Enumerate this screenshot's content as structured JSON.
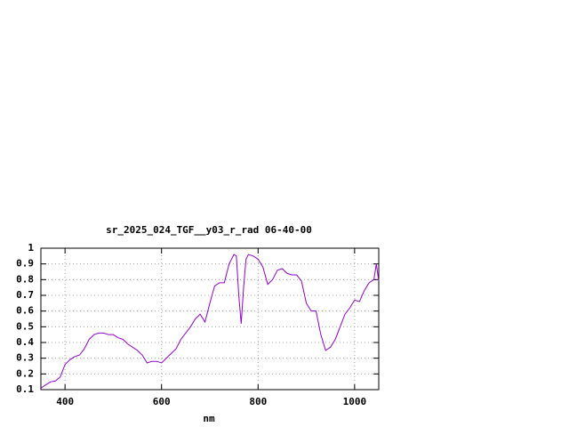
{
  "chart_data": {
    "type": "line",
    "title": "sr_2025_024_TGF__y03_r_rad 06-40-00",
    "x_label": "nm",
    "x": [
      350,
      360,
      370,
      380,
      390,
      400,
      410,
      420,
      430,
      440,
      450,
      460,
      470,
      480,
      490,
      500,
      510,
      520,
      530,
      540,
      550,
      560,
      570,
      580,
      590,
      600,
      610,
      620,
      630,
      640,
      650,
      660,
      670,
      680,
      690,
      700,
      710,
      720,
      730,
      740,
      750,
      755,
      760,
      765,
      770,
      775,
      780,
      790,
      800,
      810,
      820,
      830,
      840,
      850,
      860,
      870,
      880,
      890,
      900,
      910,
      920,
      930,
      940,
      950,
      960,
      970,
      980,
      990,
      1000,
      1010,
      1020,
      1030,
      1040,
      1045,
      1050
    ],
    "values": [
      0.11,
      0.13,
      0.15,
      0.155,
      0.18,
      0.26,
      0.29,
      0.31,
      0.32,
      0.36,
      0.42,
      0.45,
      0.46,
      0.46,
      0.45,
      0.45,
      0.43,
      0.42,
      0.39,
      0.37,
      0.35,
      0.32,
      0.27,
      0.28,
      0.28,
      0.27,
      0.3,
      0.33,
      0.36,
      0.42,
      0.46,
      0.5,
      0.55,
      0.58,
      0.53,
      0.65,
      0.76,
      0.78,
      0.78,
      0.9,
      0.96,
      0.95,
      0.7,
      0.52,
      0.75,
      0.93,
      0.96,
      0.95,
      0.93,
      0.88,
      0.77,
      0.8,
      0.86,
      0.87,
      0.84,
      0.83,
      0.83,
      0.79,
      0.65,
      0.6,
      0.6,
      0.45,
      0.35,
      0.37,
      0.42,
      0.5,
      0.58,
      0.62,
      0.67,
      0.66,
      0.73,
      0.78,
      0.8,
      0.9,
      0.79
    ],
    "color": "#9400d3",
    "xlim": [
      350,
      1050
    ],
    "xticks": [
      400,
      600,
      800,
      1000
    ],
    "ylim": [
      0.1,
      1
    ],
    "yticks": [
      0.1,
      0.2,
      0.3,
      0.4,
      0.5,
      0.6,
      0.7,
      0.8,
      0.9,
      1
    ],
    "grid": true
  }
}
